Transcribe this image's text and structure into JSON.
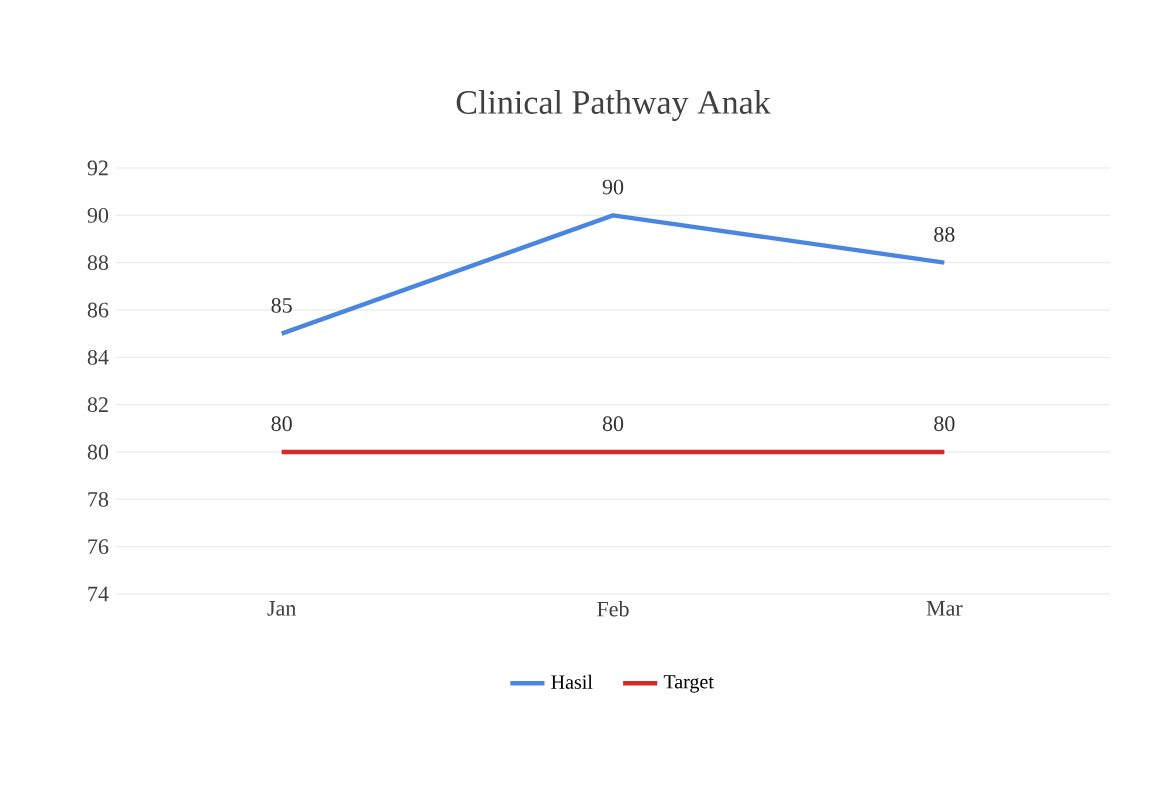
{
  "chart_data": {
    "type": "line",
    "title": "Clinical Pathway Anak",
    "categories": [
      "Jan",
      "Feb",
      "Mar"
    ],
    "series": [
      {
        "name": "Hasil",
        "color": "#4a86e0",
        "values": [
          85,
          90,
          88
        ]
      },
      {
        "name": "Target",
        "color": "#d42a2a",
        "values": [
          80,
          80,
          80
        ]
      }
    ],
    "ylim": [
      74,
      92
    ],
    "yticks": [
      74,
      76,
      78,
      80,
      82,
      84,
      86,
      88,
      90,
      92
    ],
    "grid": "y",
    "legend": "bottom",
    "data_labels": true,
    "marker": "none",
    "line_style": "solid"
  }
}
